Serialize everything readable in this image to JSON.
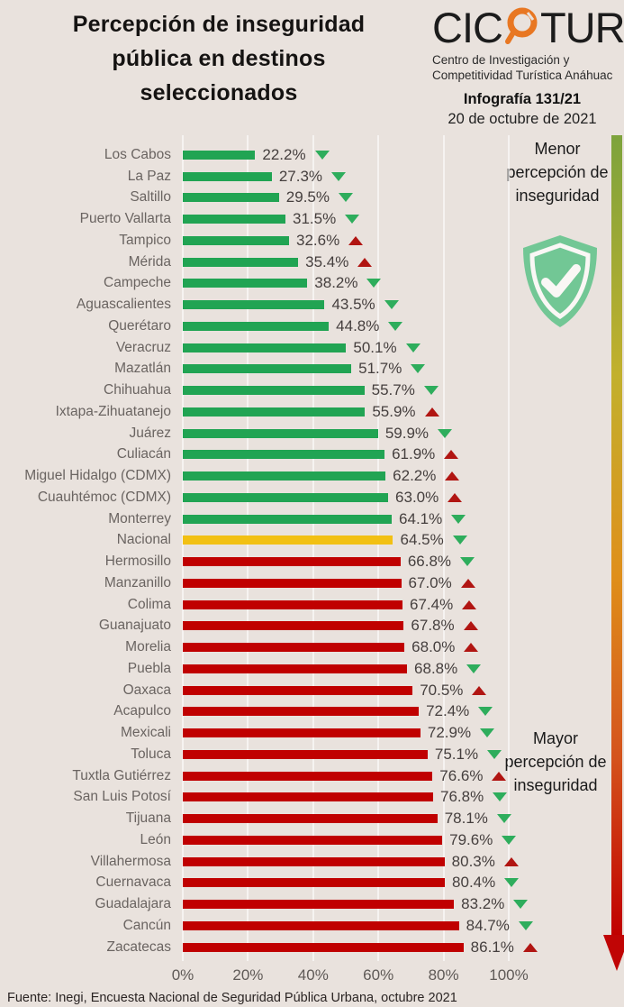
{
  "header": {
    "title_lines": [
      "Percepción de inseguridad",
      "pública en destinos",
      "seleccionados"
    ],
    "logo": {
      "text_pre": "CIC",
      "text_post": "TUR",
      "org_line1": "Centro de Investigación y",
      "org_line2": "Competitividad Turística Anáhuac"
    },
    "infographic_number": "Infografía 131/21",
    "date": "20 de octubre de 2021"
  },
  "legend": {
    "top_lines": [
      "Menor",
      "percepción de",
      "inseguridad"
    ],
    "bottom_lines": [
      "Mayor",
      "percepción de",
      "inseguridad"
    ]
  },
  "footer": {
    "source": "Fuente: Inegi,  Encuesta Nacional de Seguridad Pública Urbana, octubre  2021"
  },
  "colors": {
    "background": "#E9E2DD",
    "bar_green": "#21A453",
    "bar_red": "#C00000",
    "bar_yellow": "#F2C013",
    "arrow_green": "#2EAD5C",
    "arrow_red": "#B11512",
    "logo_orange": "#E87722",
    "shield_green": "#72C795"
  },
  "chart_data": {
    "type": "bar",
    "orientation": "horizontal",
    "xlabel": "",
    "ylabel": "",
    "xlim": [
      0,
      100
    ],
    "grid": true,
    "xticks": [
      "0%",
      "20%",
      "40%",
      "60%",
      "80%",
      "100%"
    ],
    "rows": [
      {
        "label": "Los Cabos",
        "value": 22.2,
        "value_label": "22.2%",
        "bar_color": "green",
        "trend": "down",
        "trend_color": "green"
      },
      {
        "label": "La Paz",
        "value": 27.3,
        "value_label": "27.3%",
        "bar_color": "green",
        "trend": "down",
        "trend_color": "green"
      },
      {
        "label": "Saltillo",
        "value": 29.5,
        "value_label": "29.5%",
        "bar_color": "green",
        "trend": "down",
        "trend_color": "green"
      },
      {
        "label": "Puerto Vallarta",
        "value": 31.5,
        "value_label": "31.5%",
        "bar_color": "green",
        "trend": "down",
        "trend_color": "green"
      },
      {
        "label": "Tampico",
        "value": 32.6,
        "value_label": "32.6%",
        "bar_color": "green",
        "trend": "up",
        "trend_color": "red"
      },
      {
        "label": "Mérida",
        "value": 35.4,
        "value_label": "35.4%",
        "bar_color": "green",
        "trend": "up",
        "trend_color": "red"
      },
      {
        "label": "Campeche",
        "value": 38.2,
        "value_label": "38.2%",
        "bar_color": "green",
        "trend": "down",
        "trend_color": "green"
      },
      {
        "label": "Aguascalientes",
        "value": 43.5,
        "value_label": "43.5%",
        "bar_color": "green",
        "trend": "down",
        "trend_color": "green"
      },
      {
        "label": "Querétaro",
        "value": 44.8,
        "value_label": "44.8%",
        "bar_color": "green",
        "trend": "down",
        "trend_color": "green"
      },
      {
        "label": "Veracruz",
        "value": 50.1,
        "value_label": "50.1%",
        "bar_color": "green",
        "trend": "down",
        "trend_color": "green"
      },
      {
        "label": "Mazatlán",
        "value": 51.7,
        "value_label": "51.7%",
        "bar_color": "green",
        "trend": "down",
        "trend_color": "green"
      },
      {
        "label": "Chihuahua",
        "value": 55.7,
        "value_label": "55.7%",
        "bar_color": "green",
        "trend": "down",
        "trend_color": "green"
      },
      {
        "label": "Ixtapa-Zihuatanejo",
        "value": 55.9,
        "value_label": "55.9%",
        "bar_color": "green",
        "trend": "up",
        "trend_color": "red"
      },
      {
        "label": "Juárez",
        "value": 59.9,
        "value_label": "59.9%",
        "bar_color": "green",
        "trend": "down",
        "trend_color": "green"
      },
      {
        "label": "Culiacán",
        "value": 61.9,
        "value_label": "61.9%",
        "bar_color": "green",
        "trend": "up",
        "trend_color": "red"
      },
      {
        "label": "Miguel Hidalgo (CDMX)",
        "value": 62.2,
        "value_label": "62.2%",
        "bar_color": "green",
        "trend": "up",
        "trend_color": "red"
      },
      {
        "label": "Cuauhtémoc (CDMX)",
        "value": 63.0,
        "value_label": "63.0%",
        "bar_color": "green",
        "trend": "up",
        "trend_color": "red"
      },
      {
        "label": "Monterrey",
        "value": 64.1,
        "value_label": "64.1%",
        "bar_color": "green",
        "trend": "down",
        "trend_color": "green"
      },
      {
        "label": "Nacional",
        "value": 64.5,
        "value_label": "64.5%",
        "bar_color": "yellow",
        "trend": "down",
        "trend_color": "green"
      },
      {
        "label": "Hermosillo",
        "value": 66.8,
        "value_label": "66.8%",
        "bar_color": "red",
        "trend": "down",
        "trend_color": "green"
      },
      {
        "label": "Manzanillo",
        "value": 67.0,
        "value_label": "67.0%",
        "bar_color": "red",
        "trend": "up",
        "trend_color": "red"
      },
      {
        "label": "Colima",
        "value": 67.4,
        "value_label": "67.4%",
        "bar_color": "red",
        "trend": "up",
        "trend_color": "red"
      },
      {
        "label": "Guanajuato",
        "value": 67.8,
        "value_label": "67.8%",
        "bar_color": "red",
        "trend": "up",
        "trend_color": "red"
      },
      {
        "label": "Morelia",
        "value": 68.0,
        "value_label": "68.0%",
        "bar_color": "red",
        "trend": "up",
        "trend_color": "red"
      },
      {
        "label": "Puebla",
        "value": 68.8,
        "value_label": "68.8%",
        "bar_color": "red",
        "trend": "down",
        "trend_color": "green"
      },
      {
        "label": "Oaxaca",
        "value": 70.5,
        "value_label": "70.5%",
        "bar_color": "red",
        "trend": "up",
        "trend_color": "red"
      },
      {
        "label": "Acapulco",
        "value": 72.4,
        "value_label": "72.4%",
        "bar_color": "red",
        "trend": "down",
        "trend_color": "green"
      },
      {
        "label": "Mexicali",
        "value": 72.9,
        "value_label": "72.9%",
        "bar_color": "red",
        "trend": "down",
        "trend_color": "green"
      },
      {
        "label": "Toluca",
        "value": 75.1,
        "value_label": "75.1%",
        "bar_color": "red",
        "trend": "down",
        "trend_color": "green"
      },
      {
        "label": "Tuxtla Gutiérrez",
        "value": 76.6,
        "value_label": "76.6%",
        "bar_color": "red",
        "trend": "up",
        "trend_color": "red"
      },
      {
        "label": "San Luis Potosí",
        "value": 76.8,
        "value_label": "76.8%",
        "bar_color": "red",
        "trend": "down",
        "trend_color": "green"
      },
      {
        "label": "Tijuana",
        "value": 78.1,
        "value_label": "78.1%",
        "bar_color": "red",
        "trend": "down",
        "trend_color": "green"
      },
      {
        "label": "León",
        "value": 79.6,
        "value_label": "79.6%",
        "bar_color": "red",
        "trend": "down",
        "trend_color": "green"
      },
      {
        "label": "Villahermosa",
        "value": 80.3,
        "value_label": "80.3%",
        "bar_color": "red",
        "trend": "up",
        "trend_color": "red"
      },
      {
        "label": "Cuernavaca",
        "value": 80.4,
        "value_label": "80.4%",
        "bar_color": "red",
        "trend": "down",
        "trend_color": "green"
      },
      {
        "label": "Guadalajara",
        "value": 83.2,
        "value_label": "83.2%",
        "bar_color": "red",
        "trend": "down",
        "trend_color": "green"
      },
      {
        "label": "Cancún",
        "value": 84.7,
        "value_label": "84.7%",
        "bar_color": "red",
        "trend": "down",
        "trend_color": "green"
      },
      {
        "label": "Zacatecas",
        "value": 86.1,
        "value_label": "86.1%",
        "bar_color": "red",
        "trend": "up",
        "trend_color": "red"
      }
    ]
  }
}
